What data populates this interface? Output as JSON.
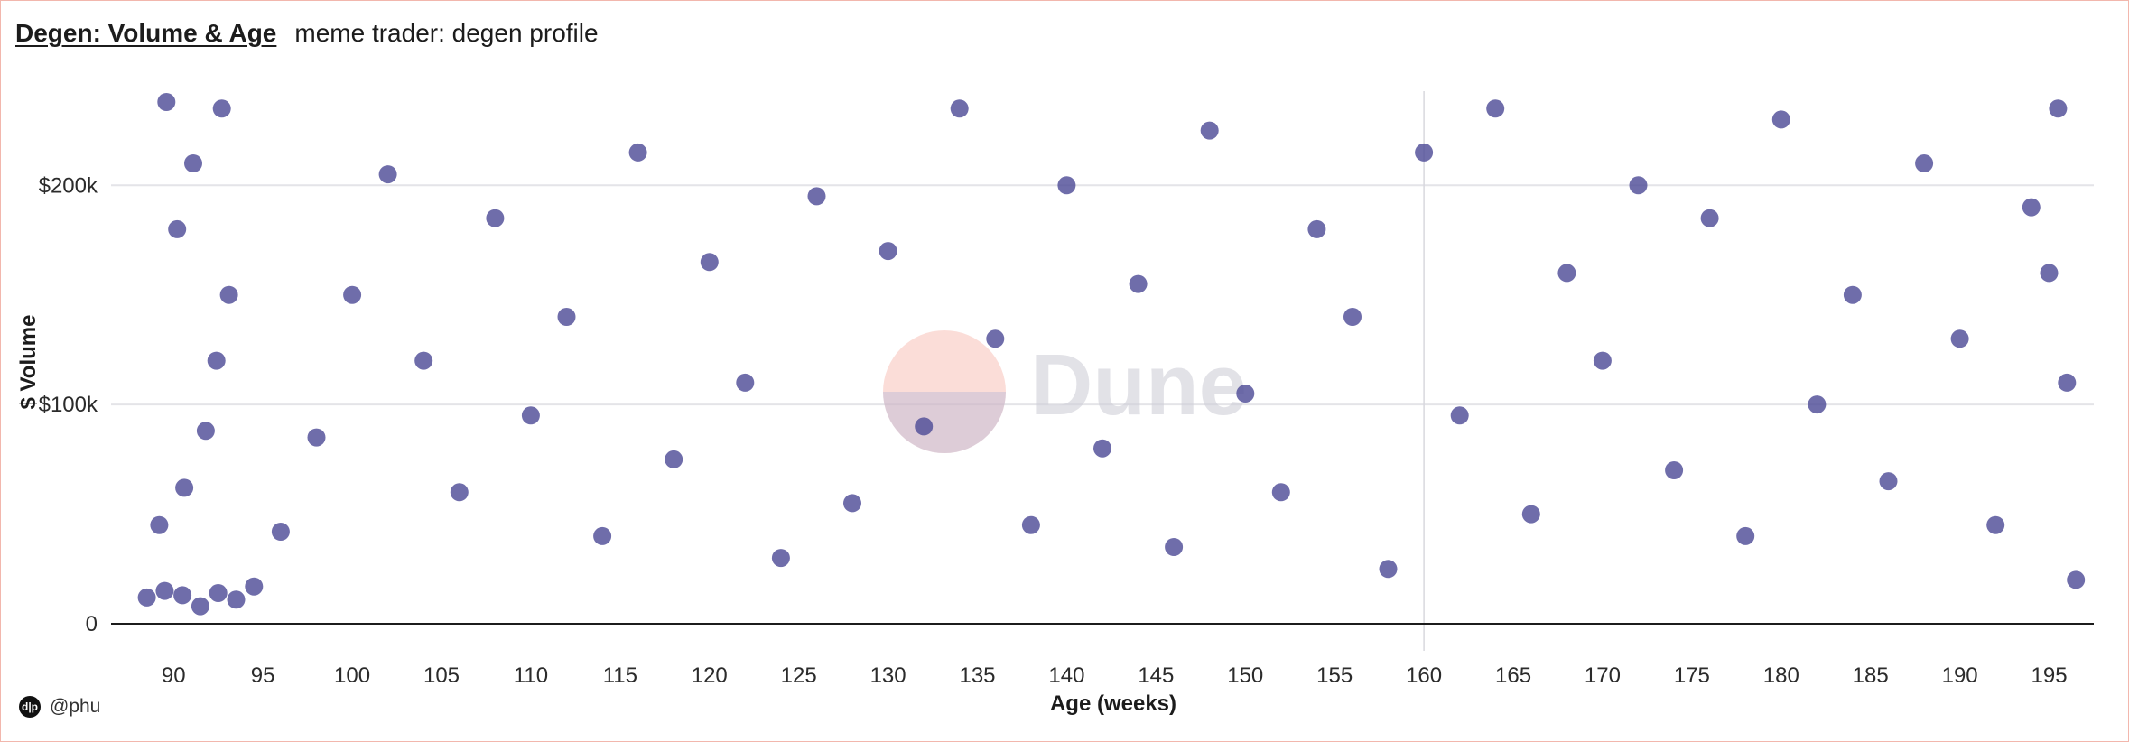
{
  "header": {
    "title": "Degen: Volume & Age",
    "subtitle": "meme trader: degen profile"
  },
  "footer": {
    "author": "@phu",
    "avatar_glyph": "d|p"
  },
  "watermark": {
    "text": "Dune"
  },
  "chart_data": {
    "type": "scatter",
    "title": "Degen: Volume & Age",
    "subtitle": "meme trader: degen profile",
    "xlabel": "Age (weeks)",
    "ylabel": "$ Volume",
    "xlim": [
      86.5,
      197.5
    ],
    "ylim": [
      0,
      245000
    ],
    "x_ticks": [
      90,
      95,
      100,
      105,
      110,
      115,
      120,
      125,
      130,
      135,
      140,
      145,
      150,
      155,
      160,
      165,
      170,
      175,
      180,
      185,
      190,
      195
    ],
    "x_tick_labels": [
      "90",
      "95",
      "100",
      "105",
      "110",
      "115",
      "120",
      "125",
      "130",
      "135",
      "140",
      "145",
      "150",
      "155",
      "160",
      "165",
      "170",
      "175",
      "180",
      "185",
      "190",
      "195"
    ],
    "y_ticks": [
      0,
      100000,
      200000
    ],
    "y_tick_labels": [
      "0",
      "$100k",
      "$200k"
    ],
    "grid": true,
    "legend": "none",
    "color": "#4f4d97",
    "series": [
      {
        "points": [
          [
            88.5,
            12000
          ],
          [
            89.5,
            15000
          ],
          [
            90.5,
            13000
          ],
          [
            91.5,
            8000
          ],
          [
            92.5,
            14000
          ],
          [
            93.5,
            11000
          ],
          [
            94.5,
            17000
          ],
          [
            89.2,
            45000
          ],
          [
            90.6,
            62000
          ],
          [
            91.8,
            88000
          ],
          [
            92.4,
            120000
          ],
          [
            93.1,
            150000
          ],
          [
            90.2,
            180000
          ],
          [
            91.1,
            210000
          ],
          [
            92.7,
            235000
          ],
          [
            89.6,
            238000
          ],
          [
            96,
            42000
          ],
          [
            98,
            85000
          ],
          [
            100,
            150000
          ],
          [
            102,
            205000
          ],
          [
            104,
            120000
          ],
          [
            106,
            60000
          ],
          [
            108,
            185000
          ],
          [
            110,
            95000
          ],
          [
            112,
            140000
          ],
          [
            114,
            40000
          ],
          [
            116,
            215000
          ],
          [
            118,
            75000
          ],
          [
            120,
            165000
          ],
          [
            122,
            110000
          ],
          [
            124,
            30000
          ],
          [
            126,
            195000
          ],
          [
            128,
            55000
          ],
          [
            130,
            170000
          ],
          [
            132,
            90000
          ],
          [
            134,
            235000
          ],
          [
            136,
            130000
          ],
          [
            138,
            45000
          ],
          [
            140,
            200000
          ],
          [
            142,
            80000
          ],
          [
            144,
            155000
          ],
          [
            146,
            35000
          ],
          [
            148,
            225000
          ],
          [
            150,
            105000
          ],
          [
            152,
            60000
          ],
          [
            154,
            180000
          ],
          [
            156,
            140000
          ],
          [
            158,
            25000
          ],
          [
            160,
            215000
          ],
          [
            162,
            95000
          ],
          [
            164,
            235000
          ],
          [
            166,
            50000
          ],
          [
            168,
            160000
          ],
          [
            170,
            120000
          ],
          [
            172,
            200000
          ],
          [
            174,
            70000
          ],
          [
            176,
            185000
          ],
          [
            178,
            40000
          ],
          [
            180,
            230000
          ],
          [
            182,
            100000
          ],
          [
            184,
            150000
          ],
          [
            186,
            65000
          ],
          [
            188,
            210000
          ],
          [
            190,
            130000
          ],
          [
            192,
            45000
          ],
          [
            194,
            190000
          ],
          [
            195.5,
            235000
          ],
          [
            196.5,
            20000
          ],
          [
            196,
            110000
          ],
          [
            195,
            160000
          ]
        ]
      }
    ]
  }
}
